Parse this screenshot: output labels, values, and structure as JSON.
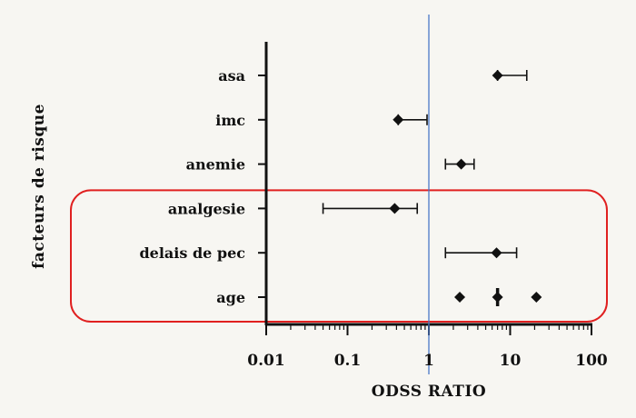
{
  "chart_data": {
    "type": "forest",
    "xlabel": "ODSS RATIO",
    "ylabel": "facteurs de risque",
    "xscale": "log",
    "xlim": [
      0.01,
      100
    ],
    "xticks": [
      {
        "value": 0.01,
        "label": "0.01"
      },
      {
        "value": 0.1,
        "label": "0.1"
      },
      {
        "value": 1,
        "label": "1"
      },
      {
        "value": 10,
        "label": "10"
      },
      {
        "value": 100,
        "label": "100"
      }
    ],
    "reference_line": 1,
    "reference_color": "#4a78c8",
    "highlight_color": "#e02020",
    "highlighted_rows": [
      "analgesie",
      "delais de pec",
      "age"
    ],
    "rows": [
      {
        "label": "asa",
        "or": 7,
        "ci": [
          7,
          16
        ]
      },
      {
        "label": "imc",
        "or": 0.42,
        "ci": [
          0.42,
          0.95
        ]
      },
      {
        "label": "anemie",
        "or": 2.5,
        "ci": [
          1.6,
          3.6
        ]
      },
      {
        "label": "analgesie",
        "or": 0.38,
        "ci": [
          0.05,
          0.72
        ]
      },
      {
        "label": "delais de pec",
        "or": 6.8,
        "ci": [
          1.6,
          12
        ]
      },
      {
        "label": "age",
        "or": 7,
        "ci": [
          7,
          7
        ],
        "extra_points": [
          2.4,
          21
        ]
      }
    ]
  }
}
